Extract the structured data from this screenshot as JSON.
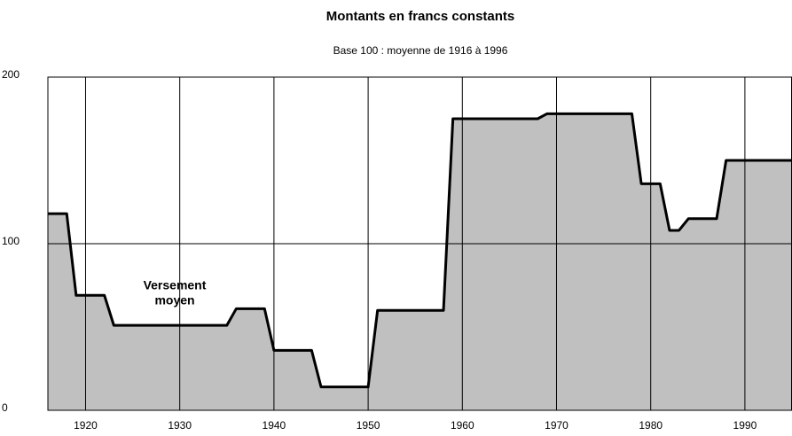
{
  "chart_data": {
    "type": "area",
    "title": "Montants en francs constants",
    "subtitle": "Base 100 : moyenne de 1916 à 1996",
    "annotation": [
      "Versement",
      "moyen"
    ],
    "x": [
      1916,
      1918,
      1919,
      1922,
      1923,
      1935,
      1936,
      1939,
      1940,
      1944,
      1945,
      1950,
      1951,
      1958,
      1959,
      1968,
      1969,
      1978,
      1979,
      1981,
      1982,
      1983,
      1984,
      1987,
      1988,
      1995
    ],
    "values": [
      118,
      118,
      69,
      69,
      51,
      51,
      61,
      61,
      36,
      36,
      14,
      14,
      60,
      60,
      175,
      175,
      178,
      178,
      136,
      136,
      108,
      108,
      115,
      115,
      150,
      150
    ],
    "color": "#c0c0c0",
    "line_color": "#000000",
    "xlim": [
      1916,
      1995
    ],
    "xticks": [
      1920,
      1930,
      1940,
      1950,
      1960,
      1970,
      1980,
      1990
    ],
    "ylim": [
      0,
      200
    ],
    "yticks": [
      0,
      100,
      200
    ],
    "grid": true
  }
}
